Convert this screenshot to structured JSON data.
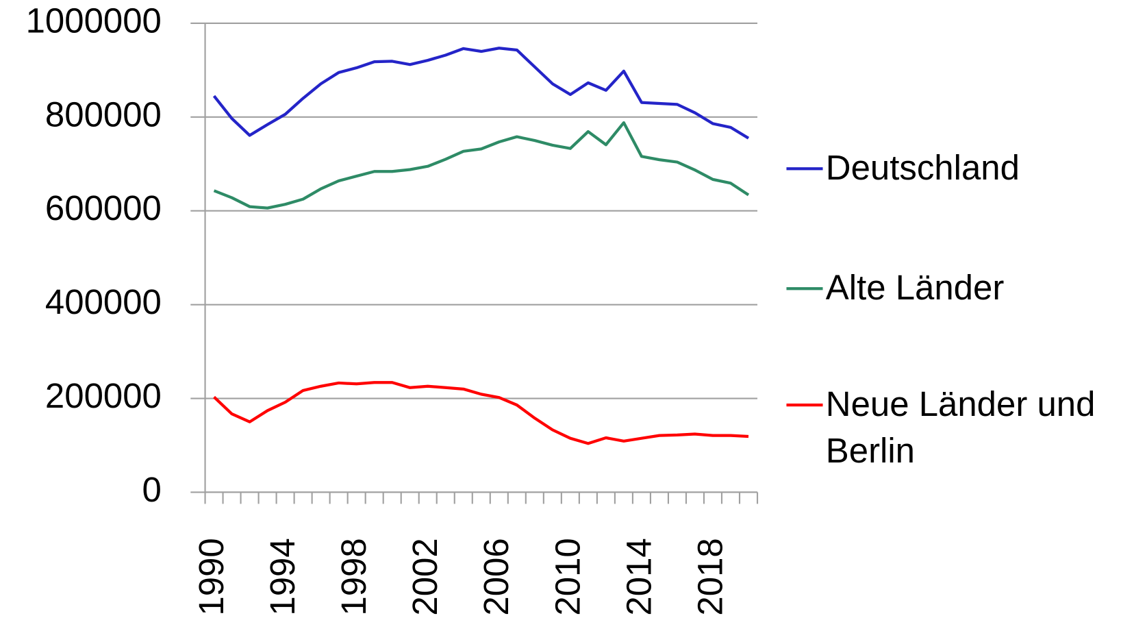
{
  "chart_data": {
    "type": "line",
    "categories": [
      "1990",
      null,
      null,
      null,
      "1994",
      null,
      null,
      null,
      "1998",
      null,
      null,
      null,
      "2002",
      null,
      null,
      null,
      "2006",
      null,
      null,
      null,
      "2010",
      null,
      null,
      null,
      "2014",
      null,
      null,
      null,
      "2018",
      null,
      null
    ],
    "series": [
      {
        "name": "Deutschland",
        "color": "#2424c8",
        "values": [
          845000,
          797000,
          761000,
          784000,
          806000,
          840000,
          871000,
          895000,
          905000,
          918000,
          919000,
          912000,
          921000,
          932000,
          946000,
          940000,
          947000,
          943000,
          907000,
          871000,
          848000,
          873000,
          857000,
          898000,
          831000,
          829000,
          827000,
          809000,
          786000,
          778000,
          755000
        ]
      },
      {
        "name": "Alte Länder",
        "color": "#2e8b66",
        "values": [
          643000,
          628000,
          609000,
          606000,
          614000,
          625000,
          647000,
          664000,
          674000,
          684000,
          684000,
          688000,
          695000,
          710000,
          727000,
          732000,
          747000,
          758000,
          750000,
          740000,
          733000,
          769000,
          741000,
          788000,
          716000,
          709000,
          704000,
          687000,
          667000,
          659000,
          634000
        ]
      },
      {
        "name": "Neue Länder und Berlin",
        "color": "#ff0000",
        "values": [
          203000,
          167000,
          150000,
          174000,
          192000,
          217000,
          226000,
          233000,
          231000,
          234000,
          234000,
          223000,
          226000,
          223000,
          220000,
          209000,
          202000,
          186000,
          158000,
          133000,
          115000,
          104000,
          116000,
          109000,
          115000,
          121000,
          122000,
          124000,
          121000,
          121000,
          119000
        ]
      }
    ],
    "ylim": [
      0,
      1000000
    ],
    "yticks": [
      0,
      200000,
      400000,
      600000,
      800000,
      1000000
    ],
    "grid": true,
    "legend": "right"
  }
}
